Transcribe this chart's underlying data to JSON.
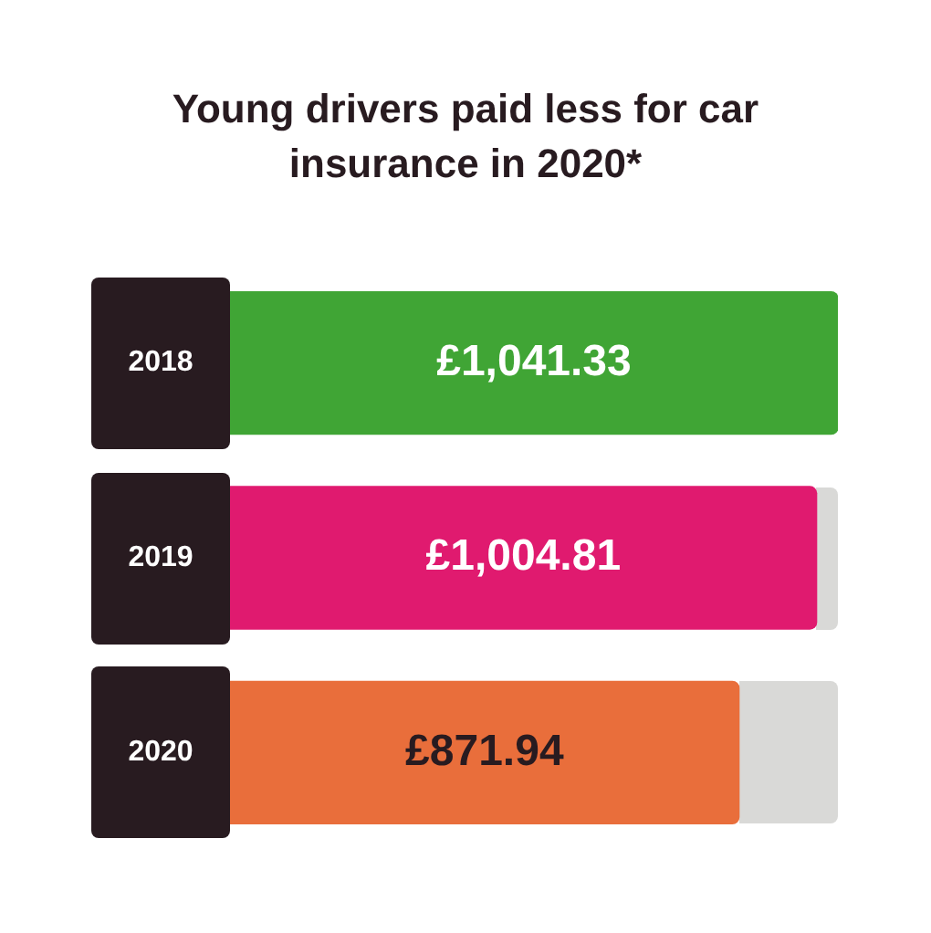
{
  "chart_data": {
    "type": "bar",
    "title": "Young drivers paid less for car insurance in 2020*",
    "orientation": "horizontal",
    "categories": [
      "2018",
      "2019",
      "2020"
    ],
    "values": [
      1041.33,
      1004.81,
      871.94
    ],
    "colors": [
      "#40a535",
      "#e01a6f",
      "#e96e3b"
    ],
    "value_labels": [
      "£1,041.33",
      "£1,004.81",
      "£871.94"
    ]
  }
}
